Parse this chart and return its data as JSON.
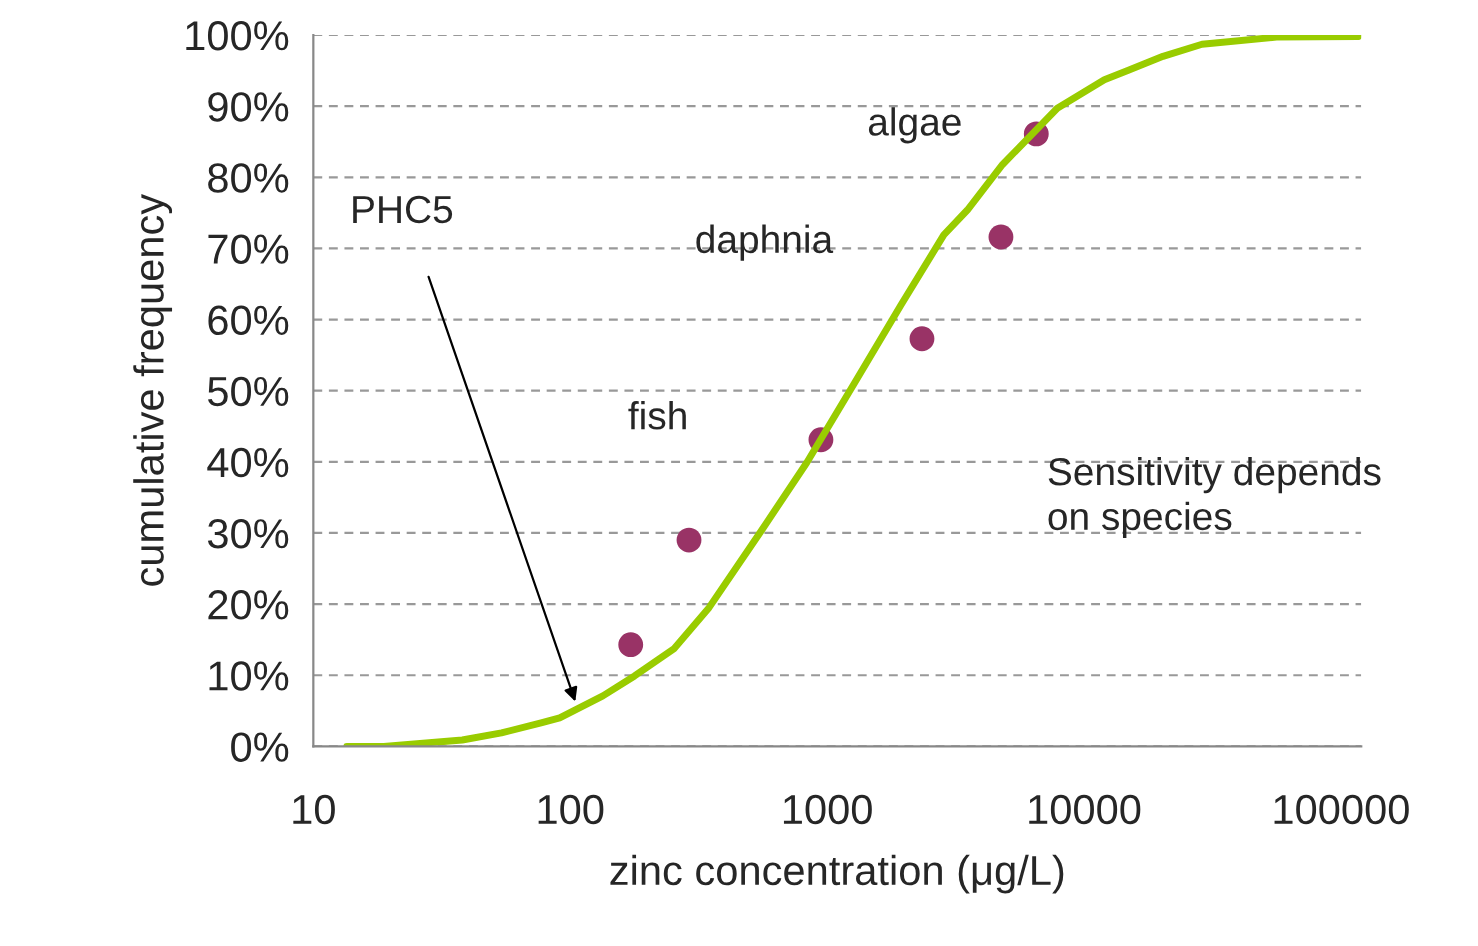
{
  "chart_data": {
    "type": "line",
    "xlabel": "zinc concentration (μg/L)",
    "ylabel": "cumulative frequency",
    "log": "x",
    "grid": "y",
    "xlim": [
      10,
      120000
    ],
    "xticks": [
      10,
      100,
      1000,
      10000,
      100000
    ],
    "ylim": [
      0,
      100
    ],
    "yticks": [
      {
        "value": 0,
        "label": "0%"
      },
      {
        "value": 10,
        "label": "10%"
      },
      {
        "value": 20,
        "label": "20%"
      },
      {
        "value": 30,
        "label": "30%"
      },
      {
        "value": 40,
        "label": "40%"
      },
      {
        "value": 50,
        "label": "50%"
      },
      {
        "value": 60,
        "label": "60%"
      },
      {
        "value": 70,
        "label": "70%"
      },
      {
        "value": 80,
        "label": "80%"
      },
      {
        "value": 90,
        "label": "90%"
      },
      {
        "value": 100,
        "label": "100%"
      }
    ],
    "series": [
      {
        "color": "#99cc00",
        "line_style": "solid",
        "x": [
          13.5,
          18.8,
          38,
          54,
          77,
          91,
          134,
          178,
          253,
          347,
          547,
          834,
          1270,
          1936,
          2846,
          3516,
          4820,
          7870,
          12000,
          14800,
          20300,
          28800,
          56200,
          117000
        ],
        "values": [
          0,
          0,
          0.9,
          1.9,
          3.3,
          4.0,
          7.1,
          9.9,
          13.7,
          19.5,
          30.0,
          39.9,
          50.9,
          62.0,
          71.9,
          75.4,
          81.8,
          89.7,
          93.7,
          95.0,
          97.0,
          98.7,
          99.7,
          99.8
        ]
      },
      {
        "type": "scatter",
        "color": "#993366",
        "marker": "circle",
        "x": [
          172,
          290,
          946,
          2340,
          4750,
          6520
        ],
        "values": [
          14.3,
          29.0,
          43.1,
          57.3,
          71.6,
          86.1
        ]
      }
    ],
    "annotations": [
      "algae",
      "daphnia",
      "fish",
      "PHC5",
      "Sensitivity depends\non species"
    ]
  }
}
